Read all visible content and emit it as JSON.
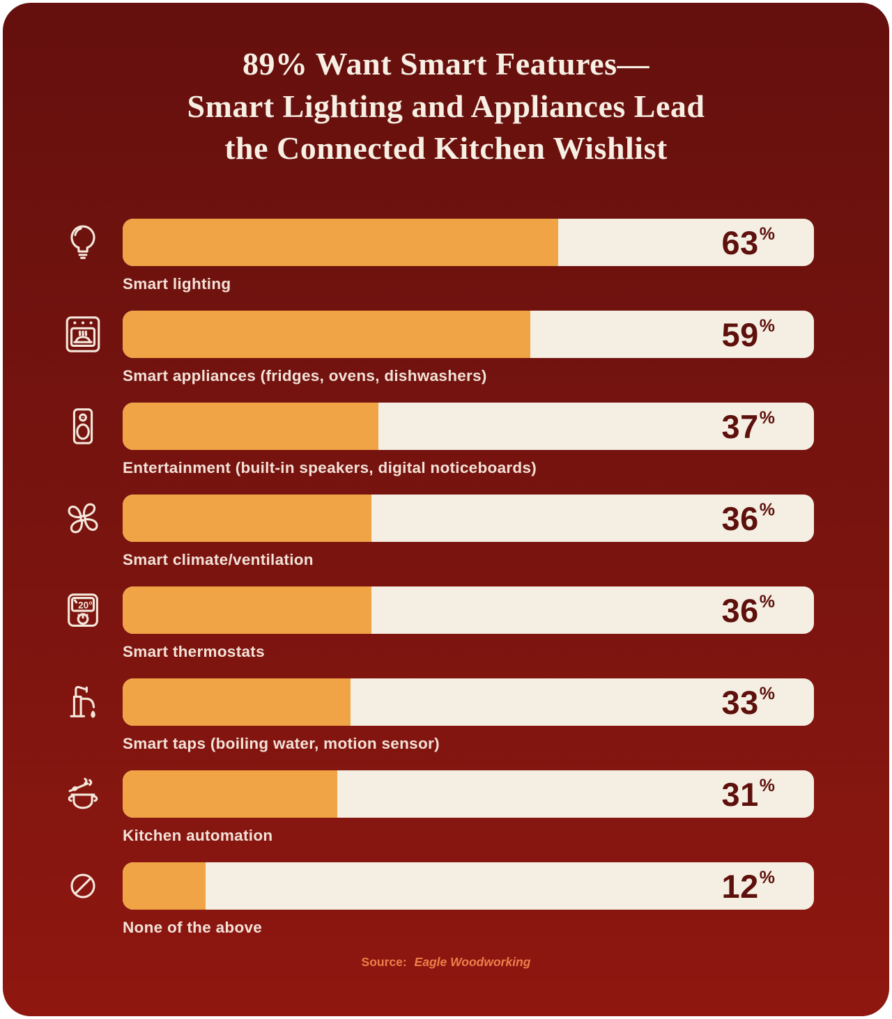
{
  "title": {
    "lines": [
      "89% Want Smart Features—",
      "Smart Lighting and Appliances Lead",
      "the Connected Kitchen Wishlist"
    ]
  },
  "chart_data": {
    "type": "bar",
    "orientation": "horizontal",
    "title": "89% Want Smart Features— Smart Lighting and Appliances Lead the Connected Kitchen Wishlist",
    "unit": "%",
    "xlim": [
      0,
      100
    ],
    "grid": false,
    "categories": [
      "Smart lighting",
      "Smart appliances (fridges, ovens, dishwashers)",
      "Entertainment (built-in speakers, digital noticeboards)",
      "Smart climate/ventilation",
      "Smart thermostats",
      "Smart taps (boiling water, motion sensor)",
      "Kitchen automation",
      "None of the above"
    ],
    "values": [
      63,
      59,
      37,
      36,
      36,
      33,
      31,
      12
    ],
    "icons": [
      "lightbulb",
      "oven",
      "speaker",
      "fan",
      "thermostat",
      "tap",
      "cooking-pot",
      "none-prohibition"
    ],
    "thermostat_icon_text": "20°"
  },
  "source": {
    "prefix": "Source:",
    "name": "Eagle Woodworking"
  },
  "colors": {
    "page_bg": "#ffffff",
    "card_top": "#65100E",
    "card_mid": "#7A140F",
    "card_bottom": "#8F1710",
    "bar_fill": "#F0A445",
    "bar_track": "#F5EFE3",
    "value_text": "#5E100C",
    "label_text": "#F3E2D8",
    "title_text": "#F7EFE3",
    "source_text": "#EC7F49",
    "icon_stroke": "#F5E8DC"
  }
}
